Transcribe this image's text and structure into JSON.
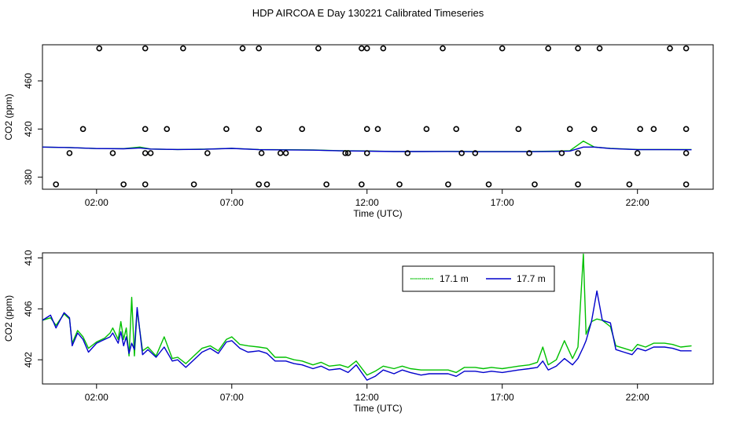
{
  "title": "HDP AIRCOA E  Day 130221  Calibrated Timeseries",
  "colors": {
    "green": "#00c000",
    "blue": "#0000cc",
    "axis": "#000000",
    "points": "#000000"
  },
  "chart_data": [
    {
      "type": "line",
      "xlabel": "Time (UTC)",
      "ylabel": "CO2 (ppm)",
      "xlim": [
        0.0,
        24.8
      ],
      "ylim": [
        370,
        490
      ],
      "xticks": [
        2,
        7,
        12,
        17,
        22
      ],
      "xtick_labels": [
        "02:00",
        "07:00",
        "12:00",
        "17:00",
        "22:00"
      ],
      "yticks": [
        380,
        420,
        460
      ],
      "grid": false,
      "series": [
        {
          "x": [
            0.0,
            1.0,
            2.0,
            3.0,
            3.6,
            4.0,
            5.0,
            6.0,
            7.0,
            8.0,
            9.0,
            10.0,
            11.0,
            12.0,
            13.0,
            14.0,
            15.0,
            16.0,
            17.0,
            18.0,
            19.0,
            19.5,
            20.0,
            20.4,
            21.0,
            22.0,
            23.0,
            24.0
          ],
          "values": [
            405.0,
            404.6,
            403.8,
            403.7,
            405.0,
            403.4,
            403.0,
            403.3,
            404.0,
            403.0,
            402.8,
            402.6,
            402.0,
            401.8,
            401.4,
            401.4,
            401.5,
            401.3,
            401.3,
            401.4,
            401.7,
            402.0,
            410.0,
            405.0,
            404.0,
            403.0,
            403.0,
            403.0
          ]
        },
        {
          "x": [
            0.0,
            1.0,
            2.0,
            3.0,
            3.6,
            4.0,
            5.0,
            6.0,
            7.0,
            8.0,
            9.0,
            10.0,
            11.0,
            12.0,
            13.0,
            14.0,
            15.0,
            16.0,
            17.0,
            18.0,
            19.0,
            19.5,
            20.0,
            20.4,
            21.0,
            22.0,
            23.0,
            24.0
          ],
          "values": [
            405.0,
            404.6,
            403.8,
            403.6,
            404.3,
            403.4,
            403.0,
            403.2,
            403.9,
            402.9,
            402.7,
            402.5,
            401.9,
            401.6,
            401.3,
            401.3,
            401.4,
            401.2,
            401.2,
            401.2,
            401.4,
            401.7,
            405.0,
            405.0,
            403.8,
            402.9,
            402.9,
            402.8
          ]
        }
      ],
      "points": {
        "x": [
          0.5,
          1.0,
          1.5,
          2.1,
          2.6,
          3.0,
          3.8,
          3.8,
          3.8,
          3.8,
          4.0,
          4.6,
          5.2,
          5.6,
          6.1,
          6.8,
          7.4,
          8.0,
          8.0,
          8.0,
          8.1,
          8.3,
          8.8,
          9.0,
          9.6,
          10.2,
          10.5,
          11.2,
          11.3,
          11.8,
          11.8,
          12.0,
          12.0,
          12.0,
          12.4,
          12.6,
          13.2,
          13.5,
          14.2,
          14.8,
          15.0,
          15.3,
          15.5,
          16.0,
          16.5,
          17.0,
          17.6,
          18.0,
          18.2,
          18.7,
          19.2,
          19.5,
          19.8,
          19.8,
          19.8,
          20.4,
          20.6,
          21.7,
          22.0,
          22.1,
          22.6,
          23.2,
          23.8,
          23.8,
          23.8,
          23.8
        ],
        "values": [
          374,
          400,
          420,
          487,
          400,
          374,
          420,
          487,
          400,
          374,
          400,
          420,
          487,
          374,
          400,
          420,
          487,
          374,
          487,
          420,
          400,
          374,
          400,
          400,
          420,
          487,
          374,
          400,
          400,
          374,
          487,
          420,
          400,
          487,
          420,
          487,
          374,
          400,
          420,
          487,
          374,
          420,
          400,
          400,
          374,
          487,
          420,
          400,
          374,
          487,
          400,
          420,
          374,
          400,
          487,
          420,
          487,
          374,
          400,
          420,
          420,
          487,
          374,
          400,
          420,
          487
        ]
      }
    },
    {
      "type": "line",
      "xlabel": "Time (UTC)",
      "ylabel": "CO2 (ppm)",
      "xlim": [
        0.0,
        24.8
      ],
      "ylim": [
        400.1,
        410.4
      ],
      "xticks": [
        2,
        7,
        12,
        17,
        22
      ],
      "xtick_labels": [
        "02:00",
        "07:00",
        "12:00",
        "17:00",
        "22:00"
      ],
      "yticks": [
        402,
        406,
        410
      ],
      "grid": false,
      "legend": {
        "placement": "top-center",
        "entries": [
          "17.1 m",
          "17.7 m"
        ]
      },
      "series": [
        {
          "name": "17.1 m",
          "x": [
            0.0,
            0.3,
            0.5,
            0.8,
            1.0,
            1.1,
            1.3,
            1.5,
            1.7,
            2.0,
            2.3,
            2.5,
            2.6,
            2.8,
            2.9,
            3.0,
            3.1,
            3.2,
            3.3,
            3.4,
            3.5,
            3.7,
            3.9,
            4.2,
            4.5,
            4.8,
            5.0,
            5.3,
            5.6,
            5.9,
            6.2,
            6.5,
            6.8,
            7.0,
            7.3,
            7.6,
            8.0,
            8.3,
            8.6,
            9.0,
            9.3,
            9.6,
            10.0,
            10.3,
            10.6,
            11.0,
            11.3,
            11.6,
            12.0,
            12.3,
            12.6,
            13.0,
            13.3,
            13.6,
            14.0,
            14.3,
            14.6,
            15.0,
            15.3,
            15.6,
            16.0,
            16.3,
            16.6,
            17.0,
            17.3,
            17.6,
            18.0,
            18.3,
            18.5,
            18.7,
            19.0,
            19.3,
            19.6,
            19.8,
            20.0,
            20.1,
            20.3,
            20.5,
            20.7,
            21.0,
            21.2,
            21.5,
            21.8,
            22.0,
            22.3,
            22.6,
            23.0,
            23.3,
            23.6,
            24.0
          ],
          "values": [
            405.1,
            405.3,
            404.7,
            405.6,
            405.2,
            403.3,
            404.3,
            403.8,
            402.9,
            403.4,
            403.7,
            404.1,
            404.5,
            403.6,
            405.0,
            403.6,
            404.5,
            402.3,
            406.9,
            402.3,
            405.9,
            402.7,
            403.0,
            402.3,
            403.8,
            402.1,
            402.2,
            401.7,
            402.3,
            402.9,
            403.1,
            402.7,
            403.6,
            403.8,
            403.2,
            403.1,
            403.0,
            402.9,
            402.2,
            402.2,
            402.0,
            401.9,
            401.6,
            401.8,
            401.5,
            401.6,
            401.4,
            401.9,
            400.8,
            401.1,
            401.5,
            401.3,
            401.5,
            401.3,
            401.2,
            401.2,
            401.2,
            401.2,
            401.0,
            401.4,
            401.4,
            401.3,
            401.4,
            401.3,
            401.4,
            401.5,
            401.6,
            401.8,
            403.0,
            401.6,
            402.0,
            403.5,
            402.1,
            403.0,
            410.3,
            404.0,
            405.0,
            405.2,
            405.1,
            404.6,
            403.1,
            402.9,
            402.7,
            403.2,
            403.0,
            403.3,
            403.3,
            403.2,
            403.0,
            403.1
          ]
        },
        {
          "name": "17.7 m",
          "x": [
            0.0,
            0.3,
            0.5,
            0.8,
            1.0,
            1.1,
            1.3,
            1.5,
            1.7,
            2.0,
            2.3,
            2.5,
            2.6,
            2.8,
            2.9,
            3.0,
            3.1,
            3.2,
            3.3,
            3.4,
            3.5,
            3.7,
            3.9,
            4.2,
            4.5,
            4.8,
            5.0,
            5.3,
            5.6,
            5.9,
            6.2,
            6.5,
            6.8,
            7.0,
            7.3,
            7.6,
            8.0,
            8.3,
            8.6,
            9.0,
            9.3,
            9.6,
            10.0,
            10.3,
            10.6,
            11.0,
            11.3,
            11.6,
            12.0,
            12.3,
            12.6,
            13.0,
            13.3,
            13.6,
            14.0,
            14.3,
            14.6,
            15.0,
            15.3,
            15.6,
            16.0,
            16.3,
            16.6,
            17.0,
            17.3,
            17.6,
            18.0,
            18.3,
            18.5,
            18.7,
            19.0,
            19.3,
            19.6,
            19.8,
            20.0,
            20.1,
            20.3,
            20.5,
            20.7,
            21.0,
            21.2,
            21.5,
            21.8,
            22.0,
            22.3,
            22.6,
            23.0,
            23.3,
            23.6,
            24.0
          ],
          "values": [
            405.1,
            405.5,
            404.5,
            405.7,
            405.3,
            403.1,
            404.1,
            403.6,
            402.6,
            403.3,
            403.6,
            403.8,
            404.1,
            403.3,
            404.2,
            403.1,
            403.8,
            402.5,
            403.3,
            402.8,
            406.1,
            402.4,
            402.8,
            402.2,
            403.0,
            401.9,
            402.0,
            401.4,
            402.0,
            402.6,
            402.9,
            402.5,
            403.4,
            403.5,
            402.9,
            402.6,
            402.7,
            402.5,
            401.9,
            401.9,
            401.7,
            401.6,
            401.3,
            401.5,
            401.2,
            401.3,
            401.0,
            401.6,
            400.4,
            400.7,
            401.2,
            400.9,
            401.2,
            401.0,
            400.8,
            400.9,
            400.9,
            400.9,
            400.7,
            401.1,
            401.1,
            401.0,
            401.1,
            401.0,
            401.1,
            401.2,
            401.3,
            401.4,
            401.9,
            401.2,
            401.5,
            402.1,
            401.6,
            402.1,
            403.0,
            403.5,
            405.0,
            407.4,
            405.1,
            404.9,
            402.8,
            402.6,
            402.4,
            402.9,
            402.7,
            403.0,
            403.0,
            402.9,
            402.7,
            402.7
          ]
        }
      ]
    }
  ]
}
